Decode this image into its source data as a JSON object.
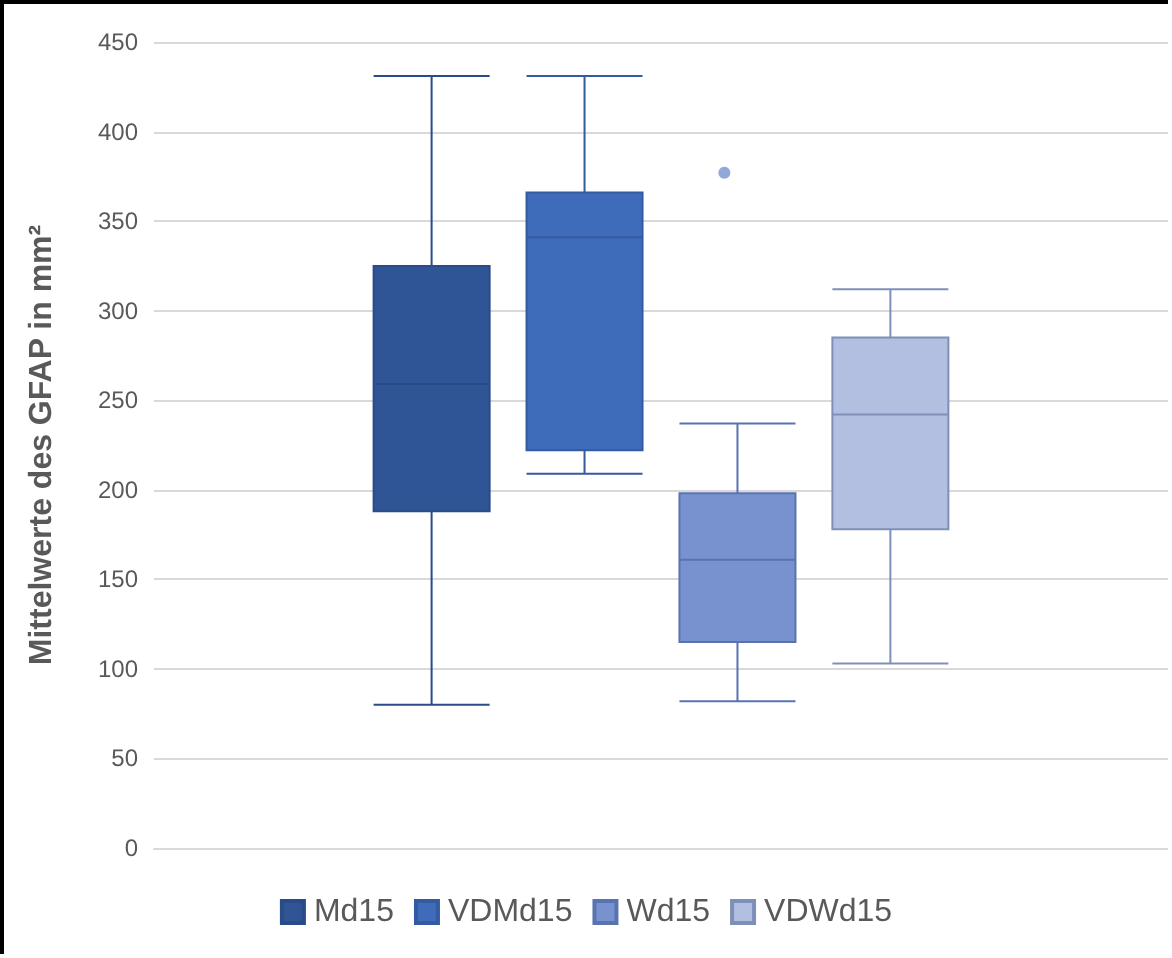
{
  "chart_data": {
    "type": "box",
    "ylabel": "Mittelwerte des GFAP in mm²",
    "categories": [
      null
    ],
    "series": [
      {
        "name": "Md15",
        "color": "#2f5597",
        "boxes": [
          {
            "low": 80,
            "q1": 188,
            "median": 259,
            "q3": 325,
            "high": 431
          }
        ]
      },
      {
        "name": "VDMd15",
        "color": "#3f6bbb",
        "boxes": [
          {
            "low": 209,
            "q1": 222,
            "median": 341,
            "q3": 366,
            "high": 431
          }
        ]
      },
      {
        "name": "Wd15",
        "color": "#7892d0",
        "boxes": [
          {
            "low": 82,
            "q1": 115,
            "median": 161,
            "q3": 198,
            "high": 237,
            "outliers": [
              377
            ]
          }
        ]
      },
      {
        "name": "VDWd15",
        "color": "#b3bfe0",
        "boxes": [
          {
            "low": 103,
            "q1": 178,
            "median": 242,
            "q3": 285,
            "high": 312
          }
        ]
      }
    ],
    "ylim": [
      0,
      450
    ],
    "yticks": [
      0,
      50,
      100,
      150,
      200,
      250,
      300,
      350,
      400,
      450
    ],
    "grid": "y",
    "legend": "bottom",
    "tick_labels": "y"
  }
}
